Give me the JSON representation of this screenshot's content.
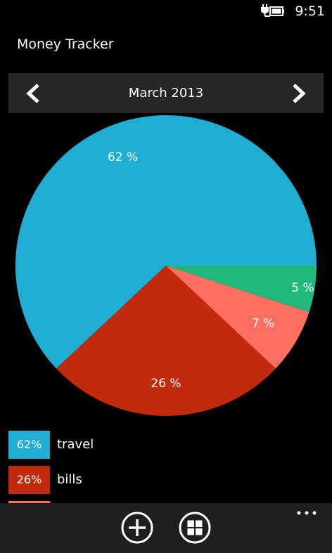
{
  "status": {
    "time": "9:51",
    "battery_icon": "battery-charging-icon"
  },
  "app": {
    "title": "Money Tracker"
  },
  "nav": {
    "month": "March 2013",
    "prev_icon": "chevron-left-icon",
    "next_icon": "chevron-right-icon"
  },
  "colors": {
    "travel": "#1fadd3",
    "bills": "#c12a0a",
    "third": "#ff6f61",
    "fourth": "#20b87b"
  },
  "chart_data": {
    "type": "pie",
    "slices": [
      {
        "name": "travel",
        "value": 62,
        "label": "62 %",
        "color": "#1fadd3"
      },
      {
        "name": "bills",
        "value": 26,
        "label": "26 %",
        "color": "#c12a0a"
      },
      {
        "name": "",
        "value": 7,
        "label": "7 %",
        "color": "#ff6f61"
      },
      {
        "name": "",
        "value": 5,
        "label": "5 %",
        "color": "#20b87b"
      }
    ]
  },
  "legend": [
    {
      "percent": "62%",
      "label": "travel",
      "color": "#1fadd3"
    },
    {
      "percent": "26%",
      "label": "bills",
      "color": "#c12a0a"
    },
    {
      "percent": "",
      "label": "",
      "color": "#ff6f61"
    }
  ],
  "app_bar": {
    "add_icon": "add-circle-icon",
    "categories_icon": "grid-circle-icon",
    "more_icon": "more-dots-icon"
  }
}
